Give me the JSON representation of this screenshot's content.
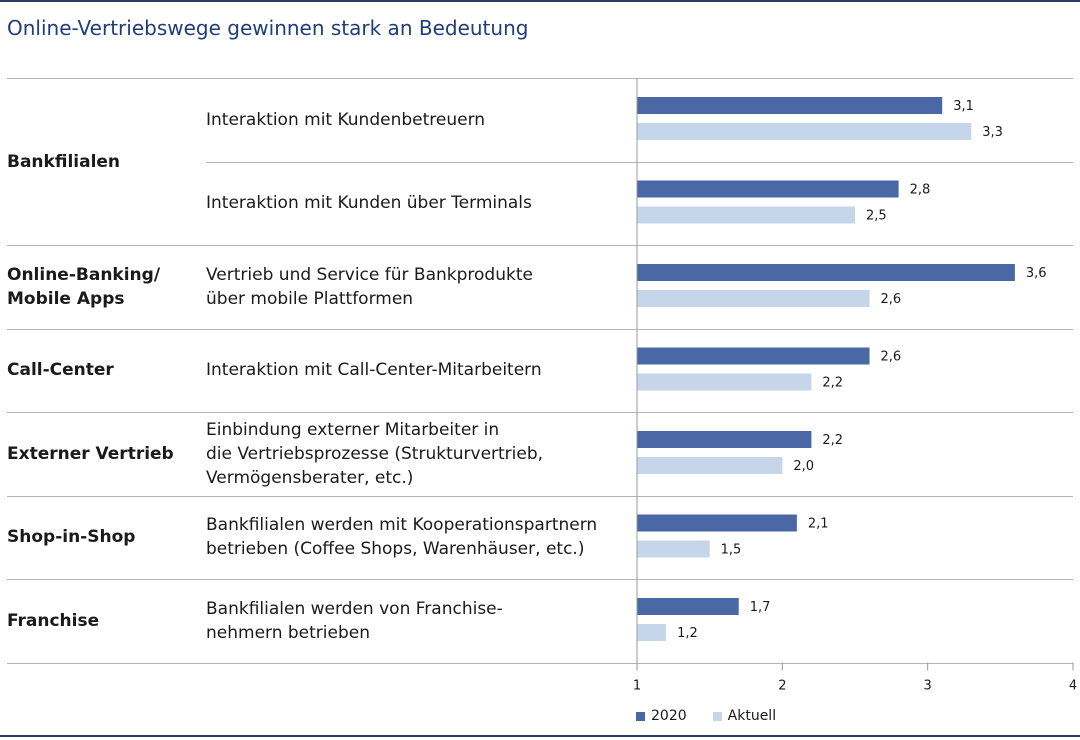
{
  "chart_data": {
    "type": "bar",
    "orientation": "horizontal",
    "title": "Online-Vertriebswege gewinnen stark an Bedeutung",
    "xlim": [
      1,
      4
    ],
    "x_ticks": [
      "1",
      "2",
      "3",
      "4"
    ],
    "legend_position": "bottom",
    "colors": {
      "2020": "#4a67a6",
      "Aktuell": "#c5d5ea"
    },
    "groups": [
      {
        "category": "Bankfilialen",
        "items": [
          {
            "label": "Interaktion mit Kundenbetreuern",
            "values": [
              3.1,
              3.3
            ],
            "labels": [
              "3,1",
              "3,3"
            ]
          },
          {
            "label": "Interaktion mit Kunden über Terminals",
            "values": [
              2.8,
              2.5
            ],
            "labels": [
              "2,8",
              "2,5"
            ]
          }
        ]
      },
      {
        "category": "Online-Banking/\nMobile Apps",
        "items": [
          {
            "label": "Vertrieb und Service für Bankprodukte\nüber mobile Plattformen",
            "values": [
              3.6,
              2.6
            ],
            "labels": [
              "3,6",
              "2,6"
            ]
          }
        ]
      },
      {
        "category": "Call-Center",
        "items": [
          {
            "label": "Interaktion mit Call-Center-Mitarbeitern",
            "values": [
              2.6,
              2.2
            ],
            "labels": [
              "2,6",
              "2,2"
            ]
          }
        ]
      },
      {
        "category": "Externer Vertrieb",
        "items": [
          {
            "label": "Einbindung externer Mitarbeiter in\ndie Vertriebsprozesse (Strukturvertrieb,\nVermögensberater, etc.)",
            "values": [
              2.2,
              2.0
            ],
            "labels": [
              "2,2",
              "2,0"
            ]
          }
        ]
      },
      {
        "category": "Shop-in-Shop",
        "items": [
          {
            "label": "Bankfilialen werden mit Kooperationspartnern\nbetrieben (Coffee Shops, Warenhäuser, etc.)",
            "values": [
              2.1,
              1.5
            ],
            "labels": [
              "2,1",
              "1,5"
            ]
          }
        ]
      },
      {
        "category": "Franchise",
        "items": [
          {
            "label": "Bankfilialen werden von Franchise-\nnehmern betrieben",
            "values": [
              1.7,
              1.2
            ],
            "labels": [
              "1,7",
              "1,2"
            ]
          }
        ]
      }
    ],
    "series": [
      {
        "name": "2020"
      },
      {
        "name": "Aktuell"
      }
    ]
  }
}
